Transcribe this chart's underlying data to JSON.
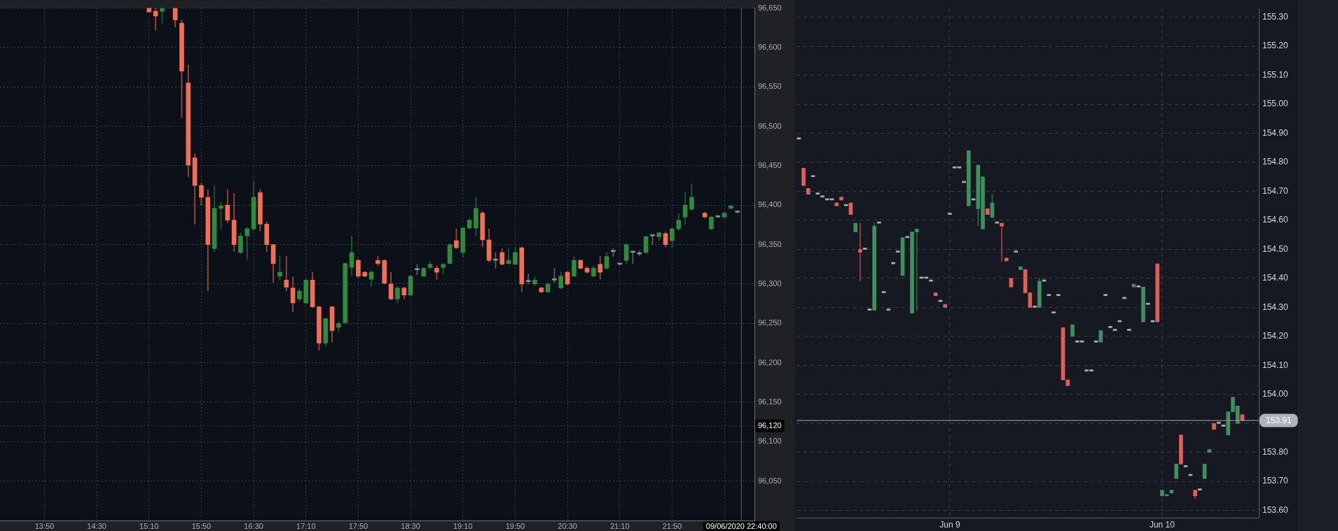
{
  "chart_data": [
    {
      "type": "candlestick",
      "x": [
        "2020-06-09T15:10",
        "2020-06-09T15:15",
        "2020-06-09T15:20",
        "2020-06-09T15:30",
        "2020-06-09T15:35",
        "2020-06-09T15:40",
        "2020-06-09T15:45",
        "2020-06-09T15:50",
        "2020-06-09T15:55",
        "2020-06-09T16:00",
        "2020-06-09T16:05",
        "2020-06-09T16:10",
        "2020-06-09T16:15",
        "2020-06-09T16:20",
        "2020-06-09T16:25",
        "2020-06-09T16:30",
        "2020-06-09T16:35",
        "2020-06-09T16:40",
        "2020-06-09T16:45",
        "2020-06-09T16:50",
        "2020-06-09T16:55",
        "2020-06-09T17:00",
        "2020-06-09T17:05",
        "2020-06-09T17:10",
        "2020-06-09T17:15",
        "2020-06-09T17:20",
        "2020-06-09T17:25",
        "2020-06-09T17:30",
        "2020-06-09T17:35",
        "2020-06-09T17:40",
        "2020-06-09T17:45",
        "2020-06-09T17:50",
        "2020-06-09T17:55",
        "2020-06-09T18:00",
        "2020-06-09T18:05",
        "2020-06-09T18:10",
        "2020-06-09T18:15",
        "2020-06-09T18:20",
        "2020-06-09T18:25",
        "2020-06-09T18:30",
        "2020-06-09T18:35",
        "2020-06-09T18:40",
        "2020-06-09T18:45",
        "2020-06-09T18:50",
        "2020-06-09T18:55",
        "2020-06-09T19:00",
        "2020-06-09T19:05",
        "2020-06-09T19:10",
        "2020-06-09T19:15",
        "2020-06-09T19:20",
        "2020-06-09T19:25",
        "2020-06-09T19:30",
        "2020-06-09T19:35",
        "2020-06-09T19:40",
        "2020-06-09T19:45",
        "2020-06-09T19:50",
        "2020-06-09T19:55",
        "2020-06-09T20:00",
        "2020-06-09T20:05",
        "2020-06-09T20:10",
        "2020-06-09T20:15",
        "2020-06-09T20:20",
        "2020-06-09T20:25",
        "2020-06-09T20:30",
        "2020-06-09T20:35",
        "2020-06-09T20:40",
        "2020-06-09T20:45",
        "2020-06-09T20:50",
        "2020-06-09T20:55",
        "2020-06-09T21:00",
        "2020-06-09T21:05",
        "2020-06-09T21:10",
        "2020-06-09T21:15",
        "2020-06-09T21:20",
        "2020-06-09T21:25",
        "2020-06-09T21:30",
        "2020-06-09T21:35",
        "2020-06-09T21:40",
        "2020-06-09T21:45",
        "2020-06-09T21:50",
        "2020-06-09T21:55",
        "2020-06-09T22:00",
        "2020-06-09T22:05",
        "2020-06-09T22:15",
        "2020-06-09T22:20",
        "2020-06-09T22:25",
        "2020-06-09T22:30",
        "2020-06-09T22:35",
        "2020-06-09T22:40"
      ],
      "ohlc": [
        [
          96650,
          96650,
          96645,
          96645
        ],
        [
          96646,
          96650,
          96622,
          96640
        ],
        [
          96646,
          96650,
          96631,
          96650
        ],
        [
          96650,
          96650,
          96626,
          96635
        ],
        [
          96631,
          96635,
          96511,
          96570
        ],
        [
          96555,
          96578,
          96436,
          96451
        ],
        [
          96460,
          96465,
          96376,
          96425
        ],
        [
          96425,
          96428,
          96400,
          96410
        ],
        [
          96410,
          96420,
          96291,
          96350
        ],
        [
          96345,
          96425,
          96341,
          96396
        ],
        [
          96396,
          96404,
          96370,
          96399
        ],
        [
          96400,
          96420,
          96378,
          96381
        ],
        [
          96381,
          96415,
          96341,
          96350
        ],
        [
          96340,
          96365,
          96338,
          96361
        ],
        [
          96361,
          96372,
          96331,
          96370
        ],
        [
          96370,
          96430,
          96368,
          96410
        ],
        [
          96416,
          96420,
          96367,
          96376
        ],
        [
          96376,
          96379,
          96341,
          96350
        ],
        [
          96350,
          96350,
          96302,
          96326
        ],
        [
          96310,
          96336,
          96305,
          96315
        ],
        [
          96305,
          96335,
          96291,
          96296
        ],
        [
          96295,
          96309,
          96265,
          96276
        ],
        [
          96281,
          96294,
          96278,
          96291
        ],
        [
          96276,
          96306,
          96275,
          96305
        ],
        [
          96305,
          96315,
          96270,
          96271
        ],
        [
          96271,
          96272,
          96216,
          96225
        ],
        [
          96225,
          96257,
          96221,
          96256
        ],
        [
          96271,
          96272,
          96226,
          96241
        ],
        [
          96245,
          96252,
          96240,
          96250
        ],
        [
          96251,
          96327,
          96250,
          96326
        ],
        [
          96321,
          96361,
          96310,
          96340
        ],
        [
          96330,
          96332,
          96308,
          96310
        ],
        [
          96315,
          96316,
          96309,
          96310
        ],
        [
          96306,
          96317,
          96297,
          96315
        ],
        [
          96330,
          96335,
          96323,
          96326
        ],
        [
          96330,
          96331,
          96300,
          96301
        ],
        [
          96300,
          96315,
          96280,
          96281
        ],
        [
          96281,
          96297,
          96276,
          96295
        ],
        [
          96295,
          96296,
          96281,
          96286
        ],
        [
          96286,
          96311,
          96285,
          96310
        ],
        [
          96318,
          96325,
          96312,
          96318
        ],
        [
          96310,
          96321,
          96309,
          96320
        ],
        [
          96321,
          96329,
          96319,
          96325
        ],
        [
          96320,
          96323,
          96306,
          96315
        ],
        [
          96321,
          96326,
          96313,
          96325
        ],
        [
          96326,
          96351,
          96326,
          96350
        ],
        [
          96355,
          96370,
          96345,
          96346
        ],
        [
          96340,
          96372,
          96334,
          96371
        ],
        [
          96371,
          96383,
          96370,
          96381
        ],
        [
          96371,
          96410,
          96361,
          96396
        ],
        [
          96390,
          96392,
          96347,
          96356
        ],
        [
          96356,
          96370,
          96328,
          96330
        ],
        [
          96330,
          96340,
          96320,
          96330
        ],
        [
          96340,
          96345,
          96324,
          96325
        ],
        [
          96326,
          96345,
          96325,
          96330
        ],
        [
          96325,
          96346,
          96324,
          96340
        ],
        [
          96346,
          96347,
          96290,
          96300
        ],
        [
          96303,
          96313,
          96300,
          96303
        ],
        [
          96300,
          96309,
          96298,
          96305
        ],
        [
          96295,
          96296,
          96289,
          96290
        ],
        [
          96290,
          96301,
          96289,
          96300
        ],
        [
          96305,
          96320,
          96302,
          96305
        ],
        [
          96295,
          96315,
          96294,
          96310
        ],
        [
          96315,
          96316,
          96299,
          96300
        ],
        [
          96310,
          96335,
          96309,
          96330
        ],
        [
          96330,
          96331,
          96319,
          96320
        ],
        [
          96320,
          96322,
          96314,
          96315
        ],
        [
          96310,
          96323,
          96309,
          96320
        ],
        [
          96325,
          96335,
          96306,
          96315
        ],
        [
          96320,
          96340,
          96319,
          96335
        ],
        [
          96341,
          96345,
          96335,
          96341
        ],
        [
          96325,
          96326,
          96324,
          96325
        ],
        [
          96330,
          96351,
          96326,
          96350
        ],
        [
          96340,
          96342,
          96326,
          96340
        ],
        [
          96338,
          96342,
          96336,
          96338
        ],
        [
          96340,
          96361,
          96339,
          96360
        ],
        [
          96361,
          96362,
          96350,
          96361
        ],
        [
          96360,
          96366,
          96355,
          96365
        ],
        [
          96364,
          96366,
          96347,
          96350
        ],
        [
          96355,
          96372,
          96346,
          96370
        ],
        [
          96370,
          96389,
          96368,
          96381
        ],
        [
          96385,
          96416,
          96376,
          96400
        ],
        [
          96395,
          96427,
          96393,
          96410
        ],
        [
          96390,
          96391,
          96384,
          96385
        ],
        [
          96370,
          96386,
          96369,
          96385
        ],
        [
          96385,
          96386,
          96384,
          96385
        ],
        [
          96385,
          96391,
          96384,
          96390
        ],
        [
          96396,
          96400,
          96395,
          96399
        ],
        [
          96391,
          96392,
          96390,
          96391
        ]
      ],
      "colors": [
        "#f26f56",
        "#f26f56",
        "#2f8a3d",
        "#f26f56",
        "#f26f56",
        "#f26f56",
        "#f26f56",
        "#f26f56",
        "#f26f56",
        "#2f8a3d",
        "#2f8a3d",
        "#f26f56",
        "#f26f56",
        "#2f8a3d",
        "#2f8a3d",
        "#2f8a3d",
        "#f26f56",
        "#f26f56",
        "#f26f56",
        "#2f8a3d",
        "#f26f56",
        "#f26f56",
        "#2f8a3d",
        "#2f8a3d",
        "#f26f56",
        "#f26f56",
        "#2f8a3d",
        "#f26f56",
        "#2f8a3d",
        "#2f8a3d",
        "#2f8a3d",
        "#f26f56",
        "#f26f56",
        "#2f8a3d",
        "#f26f56",
        "#f26f56",
        "#f26f56",
        "#2f8a3d",
        "#f26f56",
        "#2f8a3d",
        "#8a8f96",
        "#2f8a3d",
        "#2f8a3d",
        "#f26f56",
        "#2f8a3d",
        "#2f8a3d",
        "#f26f56",
        "#2f8a3d",
        "#2f8a3d",
        "#2f8a3d",
        "#f26f56",
        "#f26f56",
        "#8a8f96",
        "#f26f56",
        "#2f8a3d",
        "#2f8a3d",
        "#f26f56",
        "#8a8f96",
        "#2f8a3d",
        "#f26f56",
        "#2f8a3d",
        "#8a8f96",
        "#2f8a3d",
        "#f26f56",
        "#2f8a3d",
        "#f26f56",
        "#f26f56",
        "#2f8a3d",
        "#f26f56",
        "#2f8a3d",
        "#8a8f96",
        "#8a8f96",
        "#2f8a3d",
        "#8a8f96",
        "#8a8f96",
        "#2f8a3d",
        "#8a8f96",
        "#2f8a3d",
        "#f26f56",
        "#2f8a3d",
        "#2f8a3d",
        "#2f8a3d",
        "#2f8a3d",
        "#f26f56",
        "#2f8a3d",
        "#8a8f96",
        "#2f8a3d",
        "#2f8a3d",
        "#8a8f96"
      ],
      "xlim": [
        "2020-06-09T13:16",
        "2020-06-09T22:53"
      ],
      "xticks": [
        {
          "value": "2020-06-09T13:50",
          "label": "13:50"
        },
        {
          "value": "2020-06-09T14:30",
          "label": "14:30"
        },
        {
          "value": "2020-06-09T15:10",
          "label": "15:10"
        },
        {
          "value": "2020-06-09T15:50",
          "label": "15:50"
        },
        {
          "value": "2020-06-09T16:30",
          "label": "16:30"
        },
        {
          "value": "2020-06-09T17:10",
          "label": "17:10"
        },
        {
          "value": "2020-06-09T17:50",
          "label": "17:50"
        },
        {
          "value": "2020-06-09T18:30",
          "label": "18:30"
        },
        {
          "value": "2020-06-09T19:10",
          "label": "19:10"
        },
        {
          "value": "2020-06-09T19:50",
          "label": "19:50"
        },
        {
          "value": "2020-06-09T20:30",
          "label": "20:30"
        },
        {
          "value": "2020-06-09T21:10",
          "label": "21:10"
        },
        {
          "value": "2020-06-09T21:50",
          "label": "21:50"
        },
        {
          "value": "2020-06-09T22:30",
          "label": null
        }
      ],
      "ylim": [
        96000,
        96650
      ],
      "yticks": [
        {
          "value": 96050,
          "label": "96,050"
        },
        {
          "value": 96100,
          "label": "96,100"
        },
        {
          "value": 96150,
          "label": "96,150"
        },
        {
          "value": 96200,
          "label": "96,200"
        },
        {
          "value": 96250,
          "label": "96,250"
        },
        {
          "value": 96300,
          "label": "96,300"
        },
        {
          "value": 96350,
          "label": "96,350"
        },
        {
          "value": 96400,
          "label": "96,400"
        },
        {
          "value": 96450,
          "label": "96,450"
        },
        {
          "value": 96500,
          "label": "96,500"
        },
        {
          "value": 96550,
          "label": "96,550"
        },
        {
          "value": 96600,
          "label": "96,600"
        },
        {
          "value": 96650,
          "label": "96,650"
        }
      ],
      "grid": true,
      "ref_lines": [
        {
          "axis": "x",
          "value": "2020-06-09T22:43",
          "label": "09/06/2020 22:40:00",
          "color": "#5c6069",
          "line_style": "solid"
        },
        {
          "axis": "y",
          "value": 96120,
          "label": "96,120",
          "color": "#3c4048",
          "line_style": "dotted"
        }
      ]
    },
    {
      "type": "candlestick",
      "categories": [
        null,
        null,
        null,
        null,
        null,
        null,
        null,
        null,
        null,
        null,
        null,
        null,
        null,
        null,
        null,
        null,
        null,
        null,
        null,
        null,
        null,
        null,
        null,
        null,
        null,
        null,
        null,
        null,
        null,
        null,
        null,
        null,
        "Jun 9",
        null,
        null,
        null,
        null,
        null,
        null,
        null,
        null,
        null,
        null,
        null,
        null,
        null,
        null,
        null,
        null,
        null,
        null,
        null,
        null,
        null,
        null,
        null,
        null,
        null,
        null,
        null,
        null,
        null,
        null,
        null,
        null,
        null,
        null,
        null,
        null,
        null,
        null,
        null,
        null,
        null,
        null,
        null,
        null,
        "Jun 10",
        null,
        null,
        null,
        null,
        null,
        null,
        null,
        null,
        null,
        null,
        null,
        null,
        null,
        null,
        null,
        null,
        null,
        null,
        null,
        null
      ],
      "ohlc": [
        [
          154.88,
          154.88,
          154.88,
          154.88
        ],
        [
          154.78,
          154.78,
          154.72,
          154.72
        ],
        [
          154.71,
          154.71,
          154.69,
          154.69
        ],
        [
          154.75,
          154.75,
          154.75,
          154.75
        ],
        [
          154.69,
          154.69,
          154.69,
          154.69
        ],
        [
          154.68,
          154.68,
          154.68,
          154.68
        ],
        [
          154.67,
          154.67,
          154.67,
          154.67
        ],
        [
          154.67,
          154.67,
          154.67,
          154.67
        ],
        [
          154.66,
          154.66,
          154.65,
          154.65
        ],
        [
          154.68,
          154.68,
          154.67,
          154.67
        ],
        [
          154.65,
          154.65,
          154.65,
          154.65
        ],
        [
          154.66,
          154.66,
          154.62,
          154.62
        ],
        [
          154.56,
          154.59,
          154.56,
          154.59
        ],
        [
          154.5,
          154.59,
          154.39,
          154.49
        ],
        [
          154.5,
          154.5,
          154.5,
          154.5
        ],
        [
          154.29,
          154.29,
          154.29,
          154.29
        ],
        [
          154.29,
          154.59,
          154.29,
          154.58
        ],
        [
          154.59,
          154.59,
          154.59,
          154.59
        ],
        [
          154.35,
          154.35,
          154.35,
          154.35
        ],
        [
          154.29,
          154.29,
          154.29,
          154.29
        ],
        [
          154.45,
          154.45,
          154.45,
          154.45
        ],
        [
          154.49,
          154.49,
          154.49,
          154.49
        ],
        [
          154.41,
          154.54,
          154.41,
          154.54
        ],
        [
          154.54,
          154.54,
          154.54,
          154.54
        ],
        [
          154.28,
          154.56,
          154.28,
          154.56
        ],
        [
          154.56,
          154.57,
          154.29,
          154.57
        ],
        [
          154.4,
          154.4,
          154.4,
          154.4
        ],
        [
          154.4,
          154.4,
          154.4,
          154.4
        ],
        [
          154.39,
          154.39,
          154.39,
          154.39
        ],
        [
          154.35,
          154.35,
          154.34,
          154.34
        ],
        [
          154.32,
          154.32,
          154.32,
          154.32
        ],
        [
          154.31,
          154.31,
          154.3,
          154.3
        ],
        [
          154.62,
          154.62,
          154.62,
          154.62
        ],
        [
          154.78,
          154.78,
          154.78,
          154.78
        ],
        [
          154.78,
          154.78,
          154.78,
          154.78
        ],
        [
          154.73,
          154.73,
          154.73,
          154.73
        ],
        [
          154.65,
          154.84,
          154.65,
          154.84
        ],
        [
          154.67,
          154.67,
          154.67,
          154.67
        ],
        [
          154.64,
          154.79,
          154.58,
          154.79
        ],
        [
          154.57,
          154.75,
          154.57,
          154.75
        ],
        [
          154.64,
          154.64,
          154.62,
          154.62
        ],
        [
          154.61,
          154.69,
          154.61,
          154.66
        ],
        [
          154.59,
          154.59,
          154.59,
          154.59
        ],
        [
          154.59,
          154.59,
          154.46,
          154.58
        ],
        [
          154.47,
          154.47,
          154.46,
          154.46
        ],
        [
          154.4,
          154.4,
          154.37,
          154.37
        ],
        [
          154.49,
          154.49,
          154.49,
          154.49
        ],
        [
          154.43,
          154.44,
          154.43,
          154.44
        ],
        [
          154.43,
          154.43,
          154.35,
          154.35
        ],
        [
          154.35,
          154.35,
          154.3,
          154.3
        ],
        [
          154.3,
          154.3,
          154.3,
          154.3
        ],
        [
          154.3,
          154.4,
          154.3,
          154.39
        ],
        [
          154.39,
          154.39,
          154.39,
          154.39
        ],
        [
          154.34,
          154.34,
          154.34,
          154.34
        ],
        [
          154.28,
          154.28,
          154.28,
          154.28
        ],
        [
          154.34,
          154.34,
          154.34,
          154.34
        ],
        [
          154.23,
          154.23,
          154.05,
          154.05
        ],
        [
          154.05,
          154.05,
          154.03,
          154.03
        ],
        [
          154.2,
          154.24,
          154.2,
          154.24
        ],
        [
          154.18,
          154.18,
          154.18,
          154.18
        ],
        [
          154.18,
          154.18,
          154.18,
          154.18
        ],
        [
          154.08,
          154.08,
          154.08,
          154.08
        ],
        [
          154.08,
          154.08,
          154.08,
          154.08
        ],
        [
          154.18,
          154.18,
          154.18,
          154.18
        ],
        [
          154.18,
          154.22,
          154.18,
          154.22
        ],
        [
          154.34,
          154.34,
          154.34,
          154.34
        ],
        [
          154.23,
          154.23,
          154.23,
          154.23
        ],
        [
          154.22,
          154.22,
          154.22,
          154.22
        ],
        [
          154.25,
          154.25,
          154.25,
          154.25
        ],
        [
          154.33,
          154.33,
          154.33,
          154.33
        ],
        [
          154.22,
          154.22,
          154.22,
          154.22
        ],
        [
          154.37,
          154.38,
          154.37,
          154.38
        ],
        [
          154.37,
          154.37,
          154.37,
          154.37
        ],
        [
          154.25,
          154.37,
          154.25,
          154.37
        ],
        [
          154.31,
          154.31,
          154.31,
          154.31
        ],
        [
          154.25,
          154.25,
          154.25,
          154.25
        ],
        [
          154.45,
          154.45,
          154.25,
          154.25
        ],
        [
          153.65,
          153.67,
          153.65,
          153.67
        ],
        [
          153.65,
          153.65,
          153.65,
          153.65
        ],
        [
          153.66,
          153.67,
          153.66,
          153.67
        ],
        [
          153.71,
          153.76,
          153.71,
          153.76
        ],
        [
          153.86,
          153.86,
          153.76,
          153.76
        ],
        [
          153.75,
          153.75,
          153.75,
          153.75
        ],
        [
          153.72,
          153.72,
          153.72,
          153.72
        ],
        [
          153.67,
          153.67,
          153.64,
          153.65
        ],
        [
          153.67,
          153.67,
          153.67,
          153.67
        ],
        [
          153.71,
          153.76,
          153.71,
          153.76
        ],
        [
          153.8,
          153.81,
          153.8,
          153.81
        ],
        [
          153.9,
          153.9,
          153.88,
          153.88
        ],
        [
          153.9,
          153.9,
          153.9,
          153.9
        ],
        [
          153.89,
          153.89,
          153.89,
          153.89
        ],
        [
          153.86,
          153.94,
          153.86,
          153.94
        ],
        [
          153.94,
          153.99,
          153.94,
          153.99
        ],
        [
          153.9,
          153.96,
          153.9,
          153.96
        ],
        [
          153.93,
          153.93,
          153.91,
          153.91
        ],
        null,
        null,
        null
      ],
      "colors": [
        "#a9adb4",
        "#e25e58",
        "#e25e58",
        "#a9adb4",
        "#a9adb4",
        "#a9adb4",
        "#a9adb4",
        "#a9adb4",
        "#e25e58",
        "#e25e58",
        "#a9adb4",
        "#e25e58",
        "#3f8f5f",
        "#e25e58",
        "#a9adb4",
        "#a9adb4",
        "#3f8f5f",
        "#a9adb4",
        "#a9adb4",
        "#a9adb4",
        "#a9adb4",
        "#a9adb4",
        "#3f8f5f",
        "#a9adb4",
        "#3f8f5f",
        "#3f8f5f",
        "#a9adb4",
        "#a9adb4",
        "#a9adb4",
        "#e25e58",
        "#a9adb4",
        "#e25e58",
        "#a9adb4",
        "#a9adb4",
        "#a9adb4",
        "#a9adb4",
        "#3f8f5f",
        "#a9adb4",
        "#3f8f5f",
        "#3f8f5f",
        "#e25e58",
        "#3f8f5f",
        "#a9adb4",
        "#e25e58",
        "#e25e58",
        "#e25e58",
        "#a9adb4",
        "#3f8f5f",
        "#e25e58",
        "#e25e58",
        "#a9adb4",
        "#3f8f5f",
        "#a9adb4",
        "#a9adb4",
        "#a9adb4",
        "#a9adb4",
        "#e25e58",
        "#e25e58",
        "#3f8f5f",
        "#a9adb4",
        "#a9adb4",
        "#a9adb4",
        "#a9adb4",
        "#a9adb4",
        "#3f8f5f",
        "#a9adb4",
        "#a9adb4",
        "#a9adb4",
        "#a9adb4",
        "#a9adb4",
        "#a9adb4",
        "#3f8f5f",
        "#a9adb4",
        "#3f8f5f",
        "#a9adb4",
        "#a9adb4",
        "#e25e58",
        "#3f8f5f",
        "#3f8f5f",
        "#3f8f5f",
        "#3f8f5f",
        "#e25e58",
        "#a9adb4",
        "#a9adb4",
        "#e25e58",
        "#a9adb4",
        "#3f8f5f",
        "#3f8f5f",
        "#e25e58",
        "#a9adb4",
        "#a9adb4",
        "#3f8f5f",
        "#3f8f5f",
        "#3f8f5f",
        "#e25e58",
        null,
        null,
        null
      ],
      "ylim": [
        153.575,
        155.33
      ],
      "yticks": [
        {
          "value": 153.6,
          "label": "153.60"
        },
        {
          "value": 153.7,
          "label": "153.70"
        },
        {
          "value": 153.8,
          "label": "153.80"
        },
        {
          "value": 153.9,
          "label": null
        },
        {
          "value": 154.0,
          "label": "154.00"
        },
        {
          "value": 154.1,
          "label": "154.10"
        },
        {
          "value": 154.2,
          "label": "154.20"
        },
        {
          "value": 154.3,
          "label": "154.30"
        },
        {
          "value": 154.4,
          "label": "154.40"
        },
        {
          "value": 154.5,
          "label": "154.50"
        },
        {
          "value": 154.6,
          "label": "154.60"
        },
        {
          "value": 154.7,
          "label": "154.70"
        },
        {
          "value": 154.8,
          "label": "154.80"
        },
        {
          "value": 154.9,
          "label": "154.90"
        },
        {
          "value": 155.0,
          "label": "155.00"
        },
        {
          "value": 155.1,
          "label": "155.10"
        },
        {
          "value": 155.2,
          "label": "155.20"
        },
        {
          "value": 155.3,
          "label": "155.30"
        }
      ],
      "grid": true,
      "ref_lines": [
        {
          "axis": "y",
          "value": 153.91,
          "label": "153.91",
          "color": "#a3a7ae",
          "line_style": "solid"
        }
      ]
    }
  ]
}
